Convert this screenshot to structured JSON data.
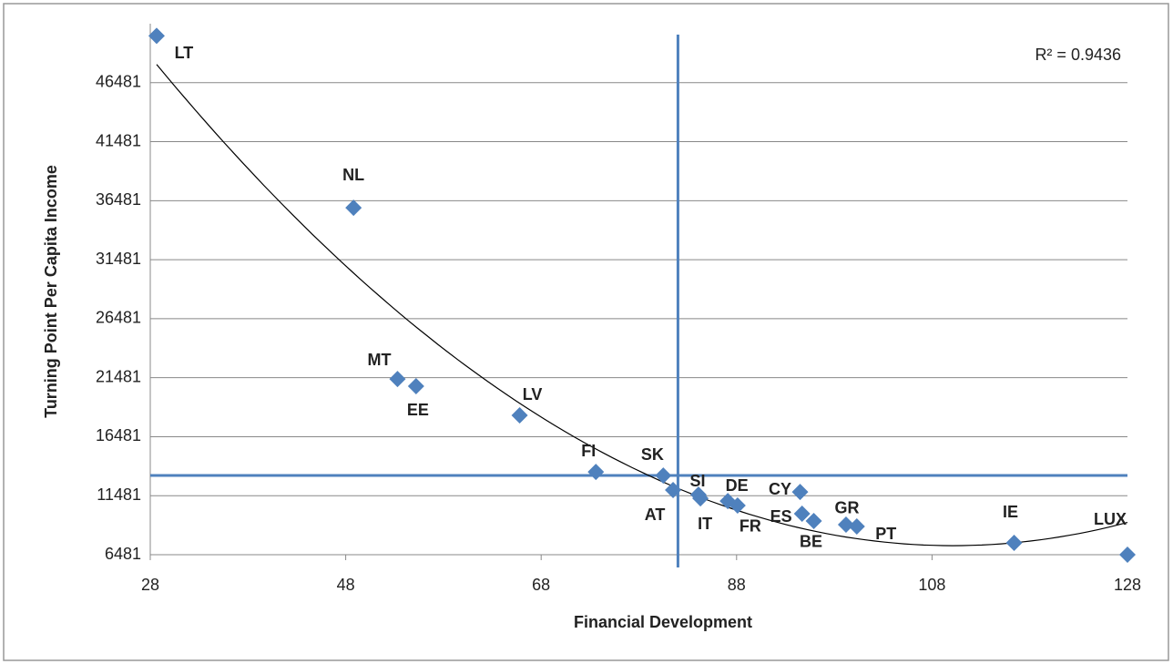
{
  "chart_data": {
    "type": "scatter",
    "x_label": "Financial Development",
    "y_label": "Turning Point Per Capita Income",
    "annotation": "R² = 0.9436",
    "point_labels": [
      "LT",
      "NL",
      "MT",
      "EE",
      "LV",
      "FI",
      "SK",
      "AT",
      "SI",
      "IT",
      "DE",
      "FR",
      "CY",
      "ES",
      "BE",
      "GR",
      "PT",
      "IE",
      "LUX"
    ],
    "x": [
      28.65,
      48.8,
      53.3,
      55.2,
      65.8,
      73.6,
      80.5,
      81.5,
      84.1,
      84.3,
      87.1,
      88.1,
      94.5,
      94.7,
      95.9,
      99.2,
      100.3,
      116.4,
      128.0
    ],
    "values": [
      50450,
      35880,
      21370,
      20760,
      18290,
      13500,
      13190,
      11960,
      11570,
      11260,
      11030,
      10650,
      11800,
      9950,
      9340,
      9030,
      8870,
      7480,
      6481
    ],
    "color": "#4f81bd",
    "trendline": {
      "type": "polynomial",
      "order": 2,
      "color": "#000000"
    },
    "reference_lines": {
      "x": 82,
      "y": 13200,
      "color": "#4f81bd"
    },
    "xlim": [
      28,
      128
    ],
    "ylim": [
      6481,
      51481
    ],
    "xticks": [
      28,
      48,
      68,
      88,
      108,
      128
    ],
    "yticks": [
      6481,
      11481,
      16481,
      21481,
      26481,
      31481,
      36481,
      41481,
      46481
    ],
    "grid": true
  }
}
